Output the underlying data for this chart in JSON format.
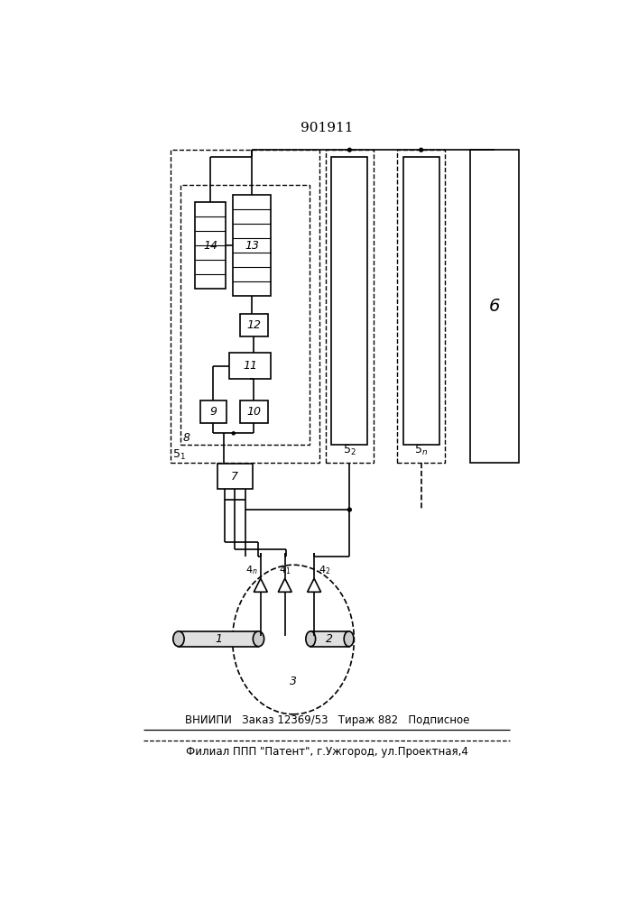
{
  "title": "901911",
  "bg_color": "#ffffff",
  "line_color": "#000000",
  "footer_line1": "ВНИИПИ   Заказ 12369/53   Тираж 882   Подписное",
  "footer_line2": "Филиал ППП \"Патент\", г.Ужгород, ул.Проектная,4"
}
